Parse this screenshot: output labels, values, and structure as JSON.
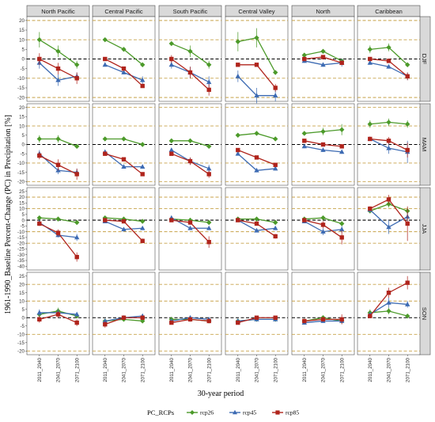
{
  "chart_data": {
    "type": "line",
    "title": "",
    "xlabel": "30-year period",
    "ylabel": "1961-1990_Baseline Percent-Change (PC) in Precipitation  [%]",
    "x_categories": [
      "2011_2040",
      "2041_2070",
      "2071_2100"
    ],
    "columns": [
      "North Pacific",
      "Central Pacific",
      "South Pacific",
      "Central Valley",
      "North",
      "Caribbean"
    ],
    "legend": {
      "title": "PC_RCPs",
      "position": "bottom"
    },
    "series_styles": [
      {
        "name": "rcp26",
        "color": "#4c9a2a",
        "marker": "diamond"
      },
      {
        "name": "rcp45",
        "color": "#3d6bb3",
        "marker": "triangle"
      },
      {
        "name": "rcp85",
        "color": "#b0241c",
        "marker": "square"
      }
    ],
    "reference_lines": {
      "zero": 0,
      "zero_color": "#000000",
      "dashed": [
        -20,
        -10,
        10,
        20
      ],
      "dashed_color": "#c8a24a"
    },
    "rows": [
      {
        "season": "DJF",
        "ylim": [
          -20,
          20
        ],
        "ticks": [
          -20,
          -15,
          -10,
          -5,
          0,
          5,
          10,
          15,
          20
        ],
        "panels": [
          {
            "rcp26": [
              10,
              4,
              -3
            ],
            "rcp26_err": [
              4,
              3,
              2
            ],
            "rcp45": [
              -2,
              -11,
              -9
            ],
            "rcp45_err": [
              3,
              3,
              2
            ],
            "rcp85": [
              0,
              -5,
              -10
            ],
            "rcp85_err": [
              3,
              3,
              3
            ]
          },
          {
            "rcp26": [
              10,
              5,
              -3
            ],
            "rcp26_err": [
              1,
              1,
              1
            ],
            "rcp45": [
              -3,
              -7,
              -11
            ],
            "rcp45_err": [
              1,
              1,
              2
            ],
            "rcp85": [
              0,
              -5,
              -14
            ],
            "rcp85_err": [
              1,
              1,
              1
            ]
          },
          {
            "rcp26": [
              8,
              4,
              -3
            ],
            "rcp26_err": [
              1,
              3,
              2
            ],
            "rcp45": [
              -3,
              -7,
              -12
            ],
            "rcp45_err": [
              2,
              3,
              3
            ],
            "rcp85": [
              0,
              -7,
              -16
            ],
            "rcp85_err": [
              2,
              3,
              3
            ]
          },
          {
            "rcp26": [
              9,
              11,
              -7
            ],
            "rcp26_err": [
              5,
              5,
              1
            ],
            "rcp45": [
              -9,
              -19,
              -19
            ],
            "rcp45_err": [
              3,
              4,
              3
            ],
            "rcp85": [
              -3,
              -3,
              -15
            ],
            "rcp85_err": [
              1,
              1,
              2
            ]
          },
          {
            "rcp26": [
              2,
              4,
              -1
            ],
            "rcp26_err": [
              1,
              1,
              1
            ],
            "rcp45": [
              -1,
              -3,
              -2
            ],
            "rcp45_err": [
              1,
              1,
              2
            ],
            "rcp85": [
              0,
              1,
              -2
            ],
            "rcp85_err": [
              1,
              1,
              1
            ]
          },
          {
            "rcp26": [
              5,
              6,
              -3
            ],
            "rcp26_err": [
              2,
              2,
              1
            ],
            "rcp45": [
              -2,
              -4,
              -9
            ],
            "rcp45_err": [
              1,
              1,
              2
            ],
            "rcp85": [
              0,
              -1,
              -9
            ],
            "rcp85_err": [
              1,
              1,
              2
            ]
          }
        ]
      },
      {
        "season": "MAM",
        "ylim": [
          -20,
          20
        ],
        "ticks": [
          -20,
          -15,
          -10,
          -5,
          0,
          5,
          10,
          15,
          20
        ],
        "panels": [
          {
            "rcp26": [
              3,
              3,
              -1
            ],
            "rcp26_err": [
              2,
              2,
              1
            ],
            "rcp45": [
              -5,
              -14,
              -15
            ],
            "rcp45_err": [
              2,
              2,
              2
            ],
            "rcp85": [
              -6,
              -11,
              -16
            ],
            "rcp85_err": [
              2,
              3,
              3
            ]
          },
          {
            "rcp26": [
              3,
              3,
              0
            ],
            "rcp26_err": [
              1,
              1,
              1
            ],
            "rcp45": [
              -4,
              -12,
              -12
            ],
            "rcp45_err": [
              1,
              1,
              1
            ],
            "rcp85": [
              -5,
              -8,
              -16
            ],
            "rcp85_err": [
              1,
              1,
              1
            ]
          },
          {
            "rcp26": [
              2,
              2,
              -1
            ],
            "rcp26_err": [
              1,
              1,
              1
            ],
            "rcp45": [
              -3,
              -9,
              -13
            ],
            "rcp45_err": [
              1,
              2,
              2
            ],
            "rcp85": [
              -5,
              -9,
              -16
            ],
            "rcp85_err": [
              1,
              2,
              2
            ]
          },
          {
            "rcp26": [
              5,
              6,
              3
            ],
            "rcp26_err": [
              1,
              1,
              1
            ],
            "rcp45": [
              -5,
              -14,
              -13
            ],
            "rcp45_err": [
              1,
              1,
              1
            ],
            "rcp85": [
              -3,
              -7,
              -11
            ],
            "rcp85_err": [
              1,
              1,
              1
            ]
          },
          {
            "rcp26": [
              6,
              7,
              8
            ],
            "rcp26_err": [
              1,
              2,
              3
            ],
            "rcp45": [
              -1,
              -3,
              -4
            ],
            "rcp45_err": [
              1,
              1,
              1
            ],
            "rcp85": [
              2,
              0,
              -1
            ],
            "rcp85_err": [
              1,
              1,
              1
            ]
          },
          {
            "rcp26": [
              11,
              12,
              11
            ],
            "rcp26_err": [
              2,
              2,
              2
            ],
            "rcp45": [
              3,
              -2,
              -4
            ],
            "rcp45_err": [
              1,
              3,
              6
            ],
            "rcp85": [
              3,
              2,
              -3
            ],
            "rcp85_err": [
              1,
              2,
              4
            ]
          }
        ]
      },
      {
        "season": "JJA",
        "ylim": [
          -40,
          25
        ],
        "ticks": [
          -40,
          -35,
          -30,
          -25,
          -20,
          -15,
          -10,
          -5,
          0,
          5,
          10,
          15,
          20,
          25
        ],
        "panels": [
          {
            "rcp26": [
              2,
              1,
              -2
            ],
            "rcp26_err": [
              1,
              1,
              1
            ],
            "rcp45": [
              -2,
              -13,
              -15
            ],
            "rcp45_err": [
              2,
              2,
              3
            ],
            "rcp85": [
              -3,
              -11,
              -32
            ],
            "rcp85_err": [
              2,
              3,
              4
            ]
          },
          {
            "rcp26": [
              2,
              1,
              -1
            ],
            "rcp26_err": [
              1,
              1,
              1
            ],
            "rcp45": [
              -1,
              -8,
              -7
            ],
            "rcp45_err": [
              1,
              1,
              1
            ],
            "rcp85": [
              0,
              -1,
              -18
            ],
            "rcp85_err": [
              1,
              1,
              2
            ]
          },
          {
            "rcp26": [
              1,
              0,
              -2
            ],
            "rcp26_err": [
              1,
              1,
              1
            ],
            "rcp45": [
              2,
              -7,
              -7
            ],
            "rcp45_err": [
              1,
              1,
              1
            ],
            "rcp85": [
              0,
              -2,
              -19
            ],
            "rcp85_err": [
              1,
              2,
              5
            ]
          },
          {
            "rcp26": [
              1,
              1,
              -2
            ],
            "rcp26_err": [
              1,
              1,
              1
            ],
            "rcp45": [
              0,
              -9,
              -7
            ],
            "rcp45_err": [
              1,
              1,
              1
            ],
            "rcp85": [
              0,
              -3,
              -14
            ],
            "rcp85_err": [
              1,
              1,
              2
            ]
          },
          {
            "rcp26": [
              1,
              2,
              -3
            ],
            "rcp26_err": [
              1,
              2,
              2
            ],
            "rcp45": [
              -1,
              -10,
              -8
            ],
            "rcp45_err": [
              1,
              3,
              3
            ],
            "rcp85": [
              0,
              -4,
              -15
            ],
            "rcp85_err": [
              1,
              3,
              6
            ]
          },
          {
            "rcp26": [
              8,
              14,
              8
            ],
            "rcp26_err": [
              2,
              3,
              3
            ],
            "rcp45": [
              9,
              -6,
              3
            ],
            "rcp45_err": [
              2,
              6,
              4
            ],
            "rcp85": [
              10,
              18,
              -3
            ],
            "rcp85_err": [
              2,
              4,
              15
            ]
          }
        ]
      },
      {
        "season": "SON",
        "ylim": [
          -20,
          25
        ],
        "ticks": [
          -20,
          -15,
          -10,
          -5,
          0,
          5,
          10,
          15,
          20,
          25
        ],
        "panels": [
          {
            "rcp26": [
              2,
              4,
              1
            ],
            "rcp26_err": [
              2,
              2,
              1
            ],
            "rcp45": [
              3,
              3,
              2
            ],
            "rcp45_err": [
              2,
              2,
              1
            ],
            "rcp85": [
              -1,
              2,
              -3
            ],
            "rcp85_err": [
              2,
              2,
              2
            ]
          },
          {
            "rcp26": [
              -2,
              -1,
              -2
            ],
            "rcp26_err": [
              1,
              1,
              1
            ],
            "rcp45": [
              -2,
              0,
              1
            ],
            "rcp45_err": [
              1,
              1,
              1
            ],
            "rcp85": [
              -4,
              0,
              0
            ],
            "rcp85_err": [
              2,
              1,
              1
            ]
          },
          {
            "rcp26": [
              -1,
              -1,
              -2
            ],
            "rcp26_err": [
              1,
              1,
              1
            ],
            "rcp45": [
              -2,
              0,
              -1
            ],
            "rcp45_err": [
              1,
              1,
              1
            ],
            "rcp85": [
              -3,
              -1,
              -2
            ],
            "rcp85_err": [
              1,
              1,
              1
            ]
          },
          {
            "rcp26": [
              -2,
              -1,
              -1
            ],
            "rcp26_err": [
              1,
              1,
              1
            ],
            "rcp45": [
              -2,
              -1,
              -1
            ],
            "rcp45_err": [
              1,
              1,
              1
            ],
            "rcp85": [
              -3,
              0,
              0
            ],
            "rcp85_err": [
              1,
              1,
              1
            ]
          },
          {
            "rcp26": [
              -2,
              0,
              -2
            ],
            "rcp26_err": [
              1,
              1,
              1
            ],
            "rcp45": [
              -3,
              -2,
              -2
            ],
            "rcp45_err": [
              1,
              1,
              1
            ],
            "rcp85": [
              -2,
              -1,
              -1
            ],
            "rcp85_err": [
              1,
              1,
              3
            ]
          },
          {
            "rcp26": [
              3,
              4,
              1
            ],
            "rcp26_err": [
              2,
              2,
              1
            ],
            "rcp45": [
              2,
              9,
              8
            ],
            "rcp45_err": [
              1,
              3,
              2
            ],
            "rcp85": [
              1,
              15,
              21
            ],
            "rcp85_err": [
              1,
              3,
              4
            ]
          }
        ]
      }
    ]
  }
}
